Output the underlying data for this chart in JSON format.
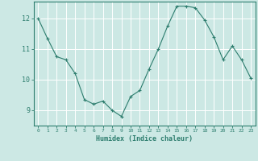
{
  "x": [
    0,
    1,
    2,
    3,
    4,
    5,
    6,
    7,
    8,
    9,
    10,
    11,
    12,
    13,
    14,
    15,
    16,
    17,
    18,
    19,
    20,
    21,
    22,
    23
  ],
  "y": [
    12.0,
    11.35,
    10.75,
    10.65,
    10.2,
    9.35,
    9.2,
    9.3,
    9.0,
    8.8,
    9.45,
    9.65,
    10.35,
    11.0,
    11.75,
    12.4,
    12.4,
    12.35,
    11.95,
    11.4,
    10.65,
    11.1,
    10.65,
    10.05
  ],
  "line_color": "#2d7d6e",
  "marker": "+",
  "marker_size": 3,
  "bg_color": "#cce8e4",
  "grid_color": "#ffffff",
  "tick_color": "#2d7d6e",
  "xlabel": "Humidex (Indice chaleur)",
  "xlim": [
    -0.5,
    23.5
  ],
  "ylim": [
    8.5,
    12.55
  ],
  "yticks": [
    9,
    10,
    11,
    12
  ],
  "xticks": [
    0,
    1,
    2,
    3,
    4,
    5,
    6,
    7,
    8,
    9,
    10,
    11,
    12,
    13,
    14,
    15,
    16,
    17,
    18,
    19,
    20,
    21,
    22,
    23
  ],
  "xtick_labels": [
    "0",
    "1",
    "2",
    "3",
    "4",
    "5",
    "6",
    "7",
    "8",
    "9",
    "10",
    "11",
    "12",
    "13",
    "14",
    "15",
    "16",
    "17",
    "18",
    "19",
    "20",
    "21",
    "22",
    "23"
  ]
}
